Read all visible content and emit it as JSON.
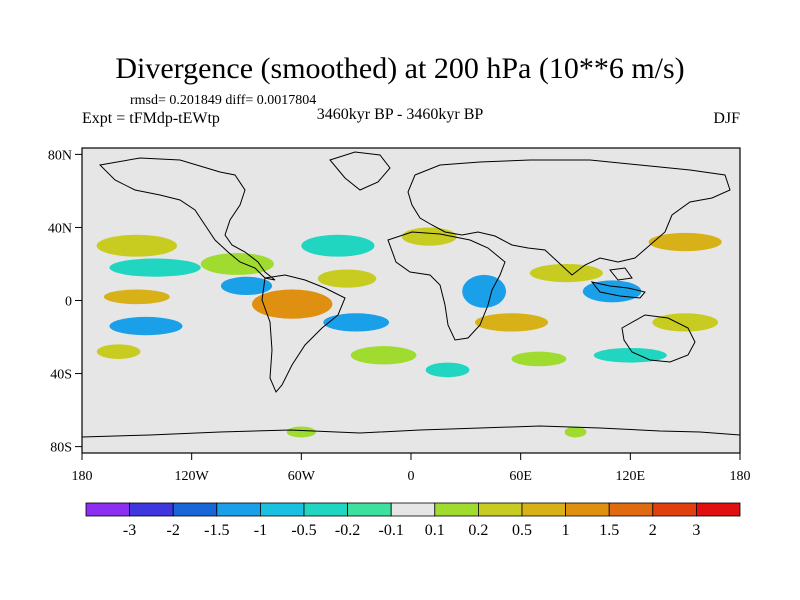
{
  "title": "Divergence (smoothed) at 200 hPa (10**6 m/s)",
  "stats": "rmsd= 0.201849 diff= 0.0017804",
  "experiment": "Expt = tFMdp-tEWtp",
  "period": "3460kyr BP - 3460kyr BP",
  "season": "DJF",
  "lat_ticks": [
    {
      "label": "80N",
      "lat": 80
    },
    {
      "label": "40N",
      "lat": 40
    },
    {
      "label": "0",
      "lat": 0
    },
    {
      "label": "40S",
      "lat": -40
    },
    {
      "label": "80S",
      "lat": -80
    }
  ],
  "lon_ticks": [
    {
      "label": "180",
      "lon": -180
    },
    {
      "label": "120W",
      "lon": -120
    },
    {
      "label": "60W",
      "lon": -60
    },
    {
      "label": "0",
      "lon": 0
    },
    {
      "label": "60E",
      "lon": 60
    },
    {
      "label": "120E",
      "lon": 120
    },
    {
      "label": "180",
      "lon": 180
    }
  ],
  "colorbar": {
    "colors": [
      "#8c2ff0",
      "#3f36e0",
      "#1866d8",
      "#1aa0e8",
      "#19c0e0",
      "#20d6c0",
      "#3ee0a0",
      "#e6e6e6",
      "#a0dc30",
      "#c8cc20",
      "#d8b018",
      "#e09010",
      "#e06a10",
      "#e04010",
      "#e01010"
    ],
    "labels": [
      "-3",
      "-2",
      "-1.5",
      "-1",
      "-0.5",
      "-0.2",
      "-0.1",
      "0.1",
      "0.2",
      "0.5",
      "1",
      "1.5",
      "2",
      "3"
    ]
  },
  "field_blobs": [
    {
      "lon": -150,
      "lat": 30,
      "rlon": 22,
      "rlat": 6,
      "color": "#c8cc20"
    },
    {
      "lon": -140,
      "lat": 18,
      "rlon": 25,
      "rlat": 5,
      "color": "#20d6c0"
    },
    {
      "lon": -150,
      "lat": 2,
      "rlon": 18,
      "rlat": 4,
      "color": "#d8b018"
    },
    {
      "lon": -145,
      "lat": -14,
      "rlon": 20,
      "rlat": 5,
      "color": "#1aa0e8"
    },
    {
      "lon": -160,
      "lat": -28,
      "rlon": 12,
      "rlat": 4,
      "color": "#c8cc20"
    },
    {
      "lon": -95,
      "lat": 20,
      "rlon": 20,
      "rlat": 6,
      "color": "#a0dc30"
    },
    {
      "lon": -90,
      "lat": 8,
      "rlon": 14,
      "rlat": 5,
      "color": "#1aa0e8"
    },
    {
      "lon": -65,
      "lat": -2,
      "rlon": 22,
      "rlat": 8,
      "color": "#e09010"
    },
    {
      "lon": -40,
      "lat": 30,
      "rlon": 20,
      "rlat": 6,
      "color": "#20d6c0"
    },
    {
      "lon": -35,
      "lat": 12,
      "rlon": 16,
      "rlat": 5,
      "color": "#c8cc20"
    },
    {
      "lon": -30,
      "lat": -12,
      "rlon": 18,
      "rlat": 5,
      "color": "#1aa0e8"
    },
    {
      "lon": -15,
      "lat": -30,
      "rlon": 18,
      "rlat": 5,
      "color": "#a0dc30"
    },
    {
      "lon": 10,
      "lat": 35,
      "rlon": 15,
      "rlat": 5,
      "color": "#c8cc20"
    },
    {
      "lon": 40,
      "lat": 5,
      "rlon": 12,
      "rlat": 9,
      "color": "#1aa0e8"
    },
    {
      "lon": 55,
      "lat": -12,
      "rlon": 20,
      "rlat": 5,
      "color": "#d8b018"
    },
    {
      "lon": 85,
      "lat": 15,
      "rlon": 20,
      "rlat": 5,
      "color": "#c8cc20"
    },
    {
      "lon": 110,
      "lat": 5,
      "rlon": 16,
      "rlat": 6,
      "color": "#1aa0e8"
    },
    {
      "lon": 150,
      "lat": 32,
      "rlon": 20,
      "rlat": 5,
      "color": "#d8b018"
    },
    {
      "lon": 150,
      "lat": -12,
      "rlon": 18,
      "rlat": 5,
      "color": "#c8cc20"
    },
    {
      "lon": 120,
      "lat": -30,
      "rlon": 20,
      "rlat": 4,
      "color": "#20d6c0"
    },
    {
      "lon": 70,
      "lat": -32,
      "rlon": 15,
      "rlat": 4,
      "color": "#a0dc30"
    },
    {
      "lon": 20,
      "lat": -38,
      "rlon": 12,
      "rlat": 4,
      "color": "#20d6c0"
    },
    {
      "lon": -60,
      "lat": -72,
      "rlon": 8,
      "rlat": 3,
      "color": "#a0dc30"
    },
    {
      "lon": 90,
      "lat": -72,
      "rlon": 6,
      "rlat": 3,
      "color": "#a0dc30"
    }
  ]
}
